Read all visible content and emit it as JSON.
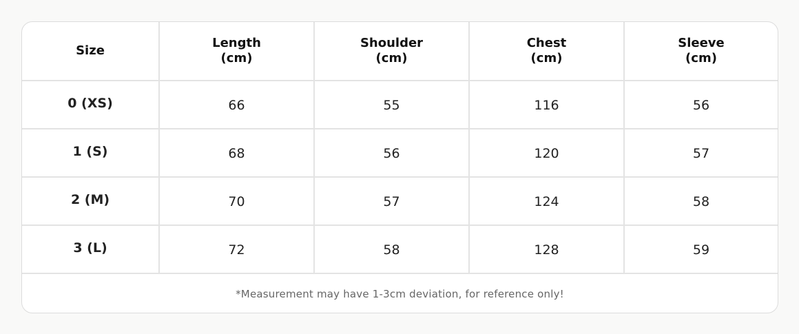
{
  "table": {
    "headers": [
      "Size",
      "Length\n(cm)",
      "Shoulder\n(cm)",
      "Chest\n(cm)",
      "Sleeve\n(cm)"
    ],
    "rows": [
      [
        "0 (XS)",
        "66",
        "55",
        "116",
        "56"
      ],
      [
        "1 (S)",
        "68",
        "56",
        "120",
        "57"
      ],
      [
        "2 (M)",
        "70",
        "57",
        "124",
        "58"
      ],
      [
        "3 (L)",
        "72",
        "58",
        "128",
        "59"
      ]
    ]
  },
  "footer": {
    "note": "*Measurement may have 1-3cm deviation, for reference only!"
  }
}
